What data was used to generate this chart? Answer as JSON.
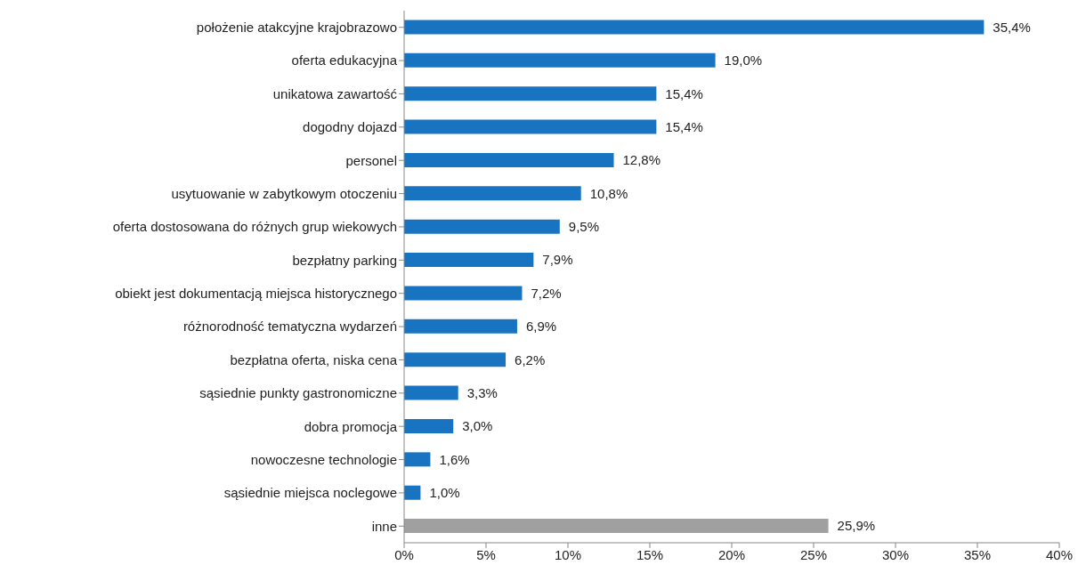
{
  "chart_data": {
    "type": "bar",
    "orientation": "horizontal",
    "categories": [
      "położenie atakcyjne krajobrazowo",
      "oferta edukacyjna",
      "unikatowa zawartość",
      "dogodny dojazd",
      "personel",
      "usytuowanie w zabytkowym otoczeniu",
      "oferta dostosowana do różnych grup wiekowych",
      "bezpłatny parking",
      "obiekt jest dokumentacją miejsca historycznego",
      "różnorodność tematyczna wydarzeń",
      "bezpłatna oferta, niska cena",
      "sąsiednie punkty gastronomiczne",
      "dobra promocja",
      "nowoczesne technologie",
      "sąsiednie miejsca noclegowe",
      "inne"
    ],
    "values": [
      35.4,
      19.0,
      15.4,
      15.4,
      12.8,
      10.8,
      9.5,
      7.9,
      7.2,
      6.9,
      6.2,
      3.3,
      3.0,
      1.6,
      1.0,
      25.9
    ],
    "value_labels": [
      "35,4%",
      "19,0%",
      "15,4%",
      "15,4%",
      "12,8%",
      "10,8%",
      "9,5%",
      "7,9%",
      "7,2%",
      "6,9%",
      "6,2%",
      "3,3%",
      "3,0%",
      "1,6%",
      "1,0%",
      "25,9%"
    ],
    "colors": [
      "#1874c1",
      "#1874c1",
      "#1874c1",
      "#1874c1",
      "#1874c1",
      "#1874c1",
      "#1874c1",
      "#1874c1",
      "#1874c1",
      "#1874c1",
      "#1874c1",
      "#1874c1",
      "#1874c1",
      "#1874c1",
      "#1874c1",
      "#a0a0a0"
    ],
    "xlim": [
      0,
      40
    ],
    "xticks": [
      {
        "value": 0,
        "label": "0%"
      },
      {
        "value": 5,
        "label": "5%"
      },
      {
        "value": 10,
        "label": "10%"
      },
      {
        "value": 15,
        "label": "15%"
      },
      {
        "value": 20,
        "label": "20%"
      },
      {
        "value": 25,
        "label": "25%"
      },
      {
        "value": 30,
        "label": "30%"
      },
      {
        "value": 35,
        "label": "35%"
      },
      {
        "value": 40,
        "label": "40%"
      }
    ]
  }
}
